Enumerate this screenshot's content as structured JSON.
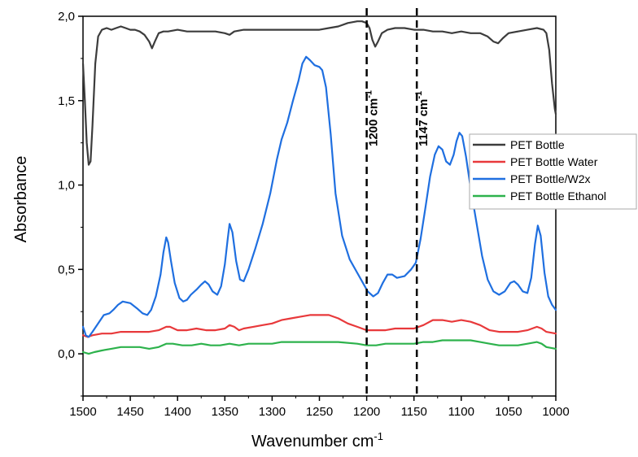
{
  "chart_data": {
    "type": "line",
    "xlabel": "Wavenumber cm",
    "xlabel_sup": "-1",
    "ylabel": "Absorbance",
    "xlim": [
      1500,
      1000
    ],
    "ylim": [
      -0.25,
      2.0
    ],
    "x_ticks": [
      1500,
      1450,
      1400,
      1350,
      1300,
      1250,
      1200,
      1150,
      1100,
      1050,
      1000
    ],
    "y_ticks": [
      {
        "value": 0.0,
        "label": "0,0"
      },
      {
        "value": 0.5,
        "label": "0,5"
      },
      {
        "value": 1.0,
        "label": "1,0"
      },
      {
        "value": 1.5,
        "label": "1,5"
      },
      {
        "value": 2.0,
        "label": "2,0"
      }
    ],
    "annotations": [
      {
        "x": 1200,
        "label": "1200 cm",
        "sup": "-1"
      },
      {
        "x": 1147,
        "label": "1147 cm",
        "sup": "-1"
      }
    ],
    "legend_position": "right",
    "series": [
      {
        "name": "PET Bottle",
        "color": "#3c3c3c",
        "points": [
          [
            1500,
            1.72
          ],
          [
            1498,
            1.5
          ],
          [
            1496,
            1.25
          ],
          [
            1494,
            1.12
          ],
          [
            1492,
            1.14
          ],
          [
            1490,
            1.35
          ],
          [
            1487,
            1.72
          ],
          [
            1484,
            1.88
          ],
          [
            1480,
            1.92
          ],
          [
            1475,
            1.93
          ],
          [
            1470,
            1.92
          ],
          [
            1465,
            1.93
          ],
          [
            1460,
            1.94
          ],
          [
            1455,
            1.93
          ],
          [
            1450,
            1.92
          ],
          [
            1445,
            1.92
          ],
          [
            1440,
            1.91
          ],
          [
            1435,
            1.89
          ],
          [
            1430,
            1.85
          ],
          [
            1427,
            1.81
          ],
          [
            1424,
            1.85
          ],
          [
            1420,
            1.9
          ],
          [
            1415,
            1.91
          ],
          [
            1410,
            1.91
          ],
          [
            1400,
            1.92
          ],
          [
            1390,
            1.91
          ],
          [
            1380,
            1.91
          ],
          [
            1370,
            1.91
          ],
          [
            1360,
            1.91
          ],
          [
            1350,
            1.9
          ],
          [
            1345,
            1.89
          ],
          [
            1340,
            1.91
          ],
          [
            1330,
            1.92
          ],
          [
            1320,
            1.92
          ],
          [
            1310,
            1.92
          ],
          [
            1300,
            1.92
          ],
          [
            1290,
            1.92
          ],
          [
            1280,
            1.92
          ],
          [
            1270,
            1.92
          ],
          [
            1260,
            1.92
          ],
          [
            1250,
            1.92
          ],
          [
            1240,
            1.93
          ],
          [
            1230,
            1.94
          ],
          [
            1220,
            1.96
          ],
          [
            1210,
            1.97
          ],
          [
            1205,
            1.97
          ],
          [
            1200,
            1.96
          ],
          [
            1197,
            1.93
          ],
          [
            1194,
            1.86
          ],
          [
            1191,
            1.82
          ],
          [
            1188,
            1.85
          ],
          [
            1184,
            1.9
          ],
          [
            1178,
            1.92
          ],
          [
            1170,
            1.93
          ],
          [
            1160,
            1.93
          ],
          [
            1150,
            1.92
          ],
          [
            1140,
            1.92
          ],
          [
            1130,
            1.91
          ],
          [
            1120,
            1.91
          ],
          [
            1110,
            1.9
          ],
          [
            1100,
            1.91
          ],
          [
            1090,
            1.9
          ],
          [
            1080,
            1.9
          ],
          [
            1072,
            1.88
          ],
          [
            1066,
            1.85
          ],
          [
            1061,
            1.84
          ],
          [
            1056,
            1.87
          ],
          [
            1050,
            1.9
          ],
          [
            1040,
            1.91
          ],
          [
            1030,
            1.92
          ],
          [
            1020,
            1.93
          ],
          [
            1013,
            1.92
          ],
          [
            1010,
            1.9
          ],
          [
            1007,
            1.8
          ],
          [
            1004,
            1.6
          ],
          [
            1001,
            1.45
          ],
          [
            1000,
            1.42
          ]
        ]
      },
      {
        "name": "PET Bottle Water",
        "color": "#e8393b",
        "points": [
          [
            1500,
            0.11
          ],
          [
            1495,
            0.1
          ],
          [
            1490,
            0.11
          ],
          [
            1480,
            0.12
          ],
          [
            1470,
            0.12
          ],
          [
            1460,
            0.13
          ],
          [
            1450,
            0.13
          ],
          [
            1440,
            0.13
          ],
          [
            1430,
            0.13
          ],
          [
            1420,
            0.14
          ],
          [
            1412,
            0.16
          ],
          [
            1408,
            0.16
          ],
          [
            1400,
            0.14
          ],
          [
            1390,
            0.14
          ],
          [
            1380,
            0.15
          ],
          [
            1370,
            0.14
          ],
          [
            1360,
            0.14
          ],
          [
            1350,
            0.15
          ],
          [
            1345,
            0.17
          ],
          [
            1340,
            0.16
          ],
          [
            1335,
            0.14
          ],
          [
            1330,
            0.15
          ],
          [
            1320,
            0.16
          ],
          [
            1310,
            0.17
          ],
          [
            1300,
            0.18
          ],
          [
            1290,
            0.2
          ],
          [
            1280,
            0.21
          ],
          [
            1270,
            0.22
          ],
          [
            1260,
            0.23
          ],
          [
            1250,
            0.23
          ],
          [
            1240,
            0.23
          ],
          [
            1230,
            0.21
          ],
          [
            1220,
            0.18
          ],
          [
            1210,
            0.16
          ],
          [
            1200,
            0.14
          ],
          [
            1190,
            0.14
          ],
          [
            1180,
            0.14
          ],
          [
            1170,
            0.15
          ],
          [
            1160,
            0.15
          ],
          [
            1150,
            0.15
          ],
          [
            1140,
            0.17
          ],
          [
            1130,
            0.2
          ],
          [
            1120,
            0.2
          ],
          [
            1110,
            0.19
          ],
          [
            1100,
            0.2
          ],
          [
            1090,
            0.19
          ],
          [
            1080,
            0.17
          ],
          [
            1070,
            0.14
          ],
          [
            1060,
            0.13
          ],
          [
            1050,
            0.13
          ],
          [
            1040,
            0.13
          ],
          [
            1030,
            0.14
          ],
          [
            1020,
            0.16
          ],
          [
            1015,
            0.15
          ],
          [
            1010,
            0.13
          ],
          [
            1000,
            0.12
          ]
        ]
      },
      {
        "name": "PET Bottle/W2x",
        "color": "#1f6fe0",
        "points": [
          [
            1500,
            0.16
          ],
          [
            1497,
            0.11
          ],
          [
            1494,
            0.1
          ],
          [
            1490,
            0.13
          ],
          [
            1484,
            0.18
          ],
          [
            1478,
            0.23
          ],
          [
            1472,
            0.24
          ],
          [
            1468,
            0.26
          ],
          [
            1463,
            0.29
          ],
          [
            1458,
            0.31
          ],
          [
            1450,
            0.3
          ],
          [
            1443,
            0.27
          ],
          [
            1437,
            0.24
          ],
          [
            1432,
            0.23
          ],
          [
            1428,
            0.26
          ],
          [
            1423,
            0.34
          ],
          [
            1418,
            0.47
          ],
          [
            1415,
            0.6
          ],
          [
            1412,
            0.69
          ],
          [
            1410,
            0.66
          ],
          [
            1407,
            0.55
          ],
          [
            1403,
            0.42
          ],
          [
            1398,
            0.33
          ],
          [
            1394,
            0.31
          ],
          [
            1390,
            0.32
          ],
          [
            1386,
            0.35
          ],
          [
            1380,
            0.38
          ],
          [
            1375,
            0.41
          ],
          [
            1371,
            0.43
          ],
          [
            1367,
            0.41
          ],
          [
            1363,
            0.37
          ],
          [
            1358,
            0.35
          ],
          [
            1354,
            0.4
          ],
          [
            1350,
            0.53
          ],
          [
            1347,
            0.68
          ],
          [
            1345,
            0.77
          ],
          [
            1342,
            0.72
          ],
          [
            1338,
            0.55
          ],
          [
            1334,
            0.44
          ],
          [
            1330,
            0.43
          ],
          [
            1325,
            0.5
          ],
          [
            1318,
            0.62
          ],
          [
            1310,
            0.77
          ],
          [
            1302,
            0.95
          ],
          [
            1295,
            1.15
          ],
          [
            1290,
            1.27
          ],
          [
            1284,
            1.37
          ],
          [
            1278,
            1.5
          ],
          [
            1272,
            1.62
          ],
          [
            1268,
            1.72
          ],
          [
            1264,
            1.76
          ],
          [
            1260,
            1.74
          ],
          [
            1255,
            1.71
          ],
          [
            1250,
            1.7
          ],
          [
            1247,
            1.68
          ],
          [
            1243,
            1.58
          ],
          [
            1238,
            1.3
          ],
          [
            1233,
            0.95
          ],
          [
            1226,
            0.7
          ],
          [
            1218,
            0.56
          ],
          [
            1210,
            0.48
          ],
          [
            1204,
            0.42
          ],
          [
            1199,
            0.37
          ],
          [
            1193,
            0.34
          ],
          [
            1188,
            0.36
          ],
          [
            1183,
            0.42
          ],
          [
            1178,
            0.47
          ],
          [
            1173,
            0.47
          ],
          [
            1168,
            0.45
          ],
          [
            1160,
            0.46
          ],
          [
            1153,
            0.5
          ],
          [
            1148,
            0.54
          ],
          [
            1143,
            0.68
          ],
          [
            1138,
            0.86
          ],
          [
            1133,
            1.05
          ],
          [
            1128,
            1.18
          ],
          [
            1124,
            1.23
          ],
          [
            1120,
            1.21
          ],
          [
            1116,
            1.14
          ],
          [
            1112,
            1.12
          ],
          [
            1108,
            1.18
          ],
          [
            1105,
            1.26
          ],
          [
            1102,
            1.31
          ],
          [
            1099,
            1.29
          ],
          [
            1095,
            1.17
          ],
          [
            1090,
            0.98
          ],
          [
            1084,
            0.78
          ],
          [
            1078,
            0.58
          ],
          [
            1072,
            0.44
          ],
          [
            1066,
            0.37
          ],
          [
            1060,
            0.35
          ],
          [
            1054,
            0.37
          ],
          [
            1048,
            0.42
          ],
          [
            1044,
            0.43
          ],
          [
            1040,
            0.41
          ],
          [
            1035,
            0.37
          ],
          [
            1030,
            0.36
          ],
          [
            1026,
            0.45
          ],
          [
            1022,
            0.65
          ],
          [
            1019,
            0.76
          ],
          [
            1016,
            0.7
          ],
          [
            1012,
            0.48
          ],
          [
            1008,
            0.34
          ],
          [
            1004,
            0.29
          ],
          [
            1000,
            0.26
          ]
        ]
      },
      {
        "name": "PET Bottle Ethanol",
        "color": "#2db24c",
        "points": [
          [
            1500,
            0.01
          ],
          [
            1494,
            0.0
          ],
          [
            1488,
            0.01
          ],
          [
            1480,
            0.02
          ],
          [
            1470,
            0.03
          ],
          [
            1460,
            0.04
          ],
          [
            1450,
            0.04
          ],
          [
            1440,
            0.04
          ],
          [
            1430,
            0.03
          ],
          [
            1420,
            0.04
          ],
          [
            1412,
            0.06
          ],
          [
            1405,
            0.06
          ],
          [
            1395,
            0.05
          ],
          [
            1385,
            0.05
          ],
          [
            1375,
            0.06
          ],
          [
            1365,
            0.05
          ],
          [
            1355,
            0.05
          ],
          [
            1345,
            0.06
          ],
          [
            1335,
            0.05
          ],
          [
            1325,
            0.06
          ],
          [
            1310,
            0.06
          ],
          [
            1300,
            0.06
          ],
          [
            1290,
            0.07
          ],
          [
            1270,
            0.07
          ],
          [
            1250,
            0.07
          ],
          [
            1230,
            0.07
          ],
          [
            1210,
            0.06
          ],
          [
            1200,
            0.05
          ],
          [
            1190,
            0.05
          ],
          [
            1180,
            0.06
          ],
          [
            1170,
            0.06
          ],
          [
            1160,
            0.06
          ],
          [
            1150,
            0.06
          ],
          [
            1140,
            0.07
          ],
          [
            1130,
            0.07
          ],
          [
            1120,
            0.08
          ],
          [
            1110,
            0.08
          ],
          [
            1100,
            0.08
          ],
          [
            1090,
            0.08
          ],
          [
            1080,
            0.07
          ],
          [
            1070,
            0.06
          ],
          [
            1060,
            0.05
          ],
          [
            1050,
            0.05
          ],
          [
            1040,
            0.05
          ],
          [
            1030,
            0.06
          ],
          [
            1020,
            0.07
          ],
          [
            1015,
            0.06
          ],
          [
            1010,
            0.04
          ],
          [
            1000,
            0.03
          ]
        ]
      }
    ]
  }
}
